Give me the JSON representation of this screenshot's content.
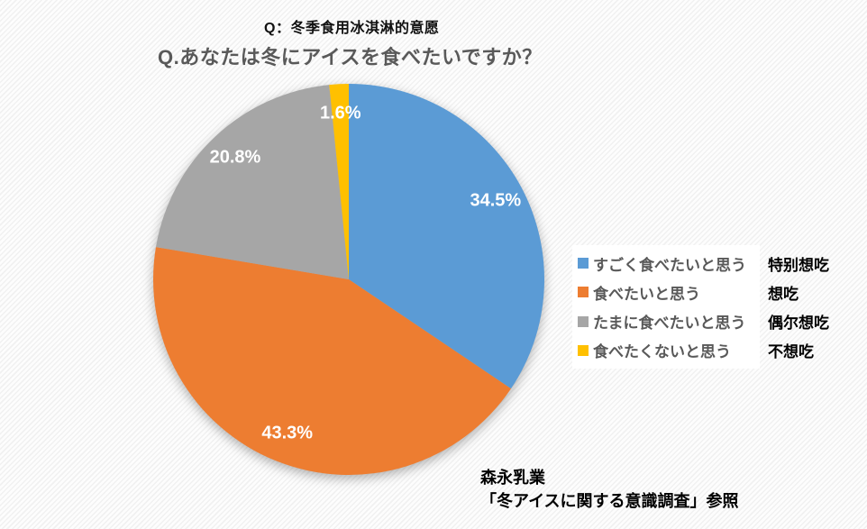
{
  "page": {
    "header_cn": "Q：冬季食用冰淇淋的意愿",
    "question_jp": "Q.あなたは冬にアイスを食べたいですか？"
  },
  "chart_data": {
    "type": "pie",
    "title": "Q.あなたは冬にアイスを食べたいですか？",
    "categories": [
      "すごく食べたいと思う",
      "食べたいと思う",
      "たまに食べたいと思う",
      "食べたくないと思う"
    ],
    "values": [
      34.5,
      43.3,
      20.8,
      1.6
    ],
    "labels": [
      "34.5%",
      "43.3%",
      "20.8%",
      "1.6%"
    ],
    "colors": [
      "#5B9BD5",
      "#ED7D31",
      "#A6A6A6",
      "#FFC000"
    ],
    "start_angle_deg": 0,
    "direction": "clockwise",
    "legend_position": "right",
    "data_label_color": "#FFFFFF"
  },
  "legend": {
    "items": [
      {
        "label": "すごく食べたいと思う",
        "translation_cn": "特别想吃",
        "color": "#5B9BD5"
      },
      {
        "label": "食べたいと思う",
        "translation_cn": "想吃",
        "color": "#ED7D31"
      },
      {
        "label": "たまに食べたいと思う",
        "translation_cn": "偶尔想吃",
        "color": "#A6A6A6"
      },
      {
        "label": "食べたくないと思う",
        "translation_cn": "不想吃",
        "color": "#FFC000"
      }
    ]
  },
  "source": {
    "line1": "森永乳業",
    "line2": "「冬アイスに関する意識調査」参照"
  }
}
